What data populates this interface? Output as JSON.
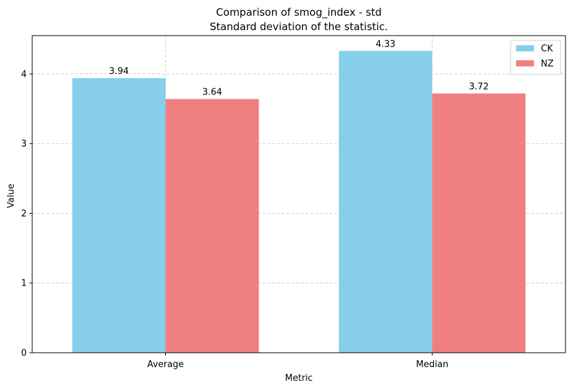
{
  "chart_data": {
    "type": "bar",
    "title": "Comparison of smog_index - std",
    "subtitle": "Standard deviation of the statistic.",
    "xlabel": "Metric",
    "ylabel": "Value",
    "categories": [
      "Average",
      "Median"
    ],
    "series": [
      {
        "name": "CK",
        "values": [
          3.94,
          4.33
        ],
        "color": "#87CEEB"
      },
      {
        "name": "NZ",
        "values": [
          3.64,
          3.72
        ],
        "color": "#F08080"
      }
    ],
    "data_labels": [
      [
        "3.94",
        "4.33"
      ],
      [
        "3.64",
        "3.72"
      ]
    ],
    "ylim": [
      0,
      4.55
    ],
    "yticks": [
      0,
      1,
      2,
      3,
      4
    ],
    "grid": true,
    "legend_position": "top-right"
  }
}
